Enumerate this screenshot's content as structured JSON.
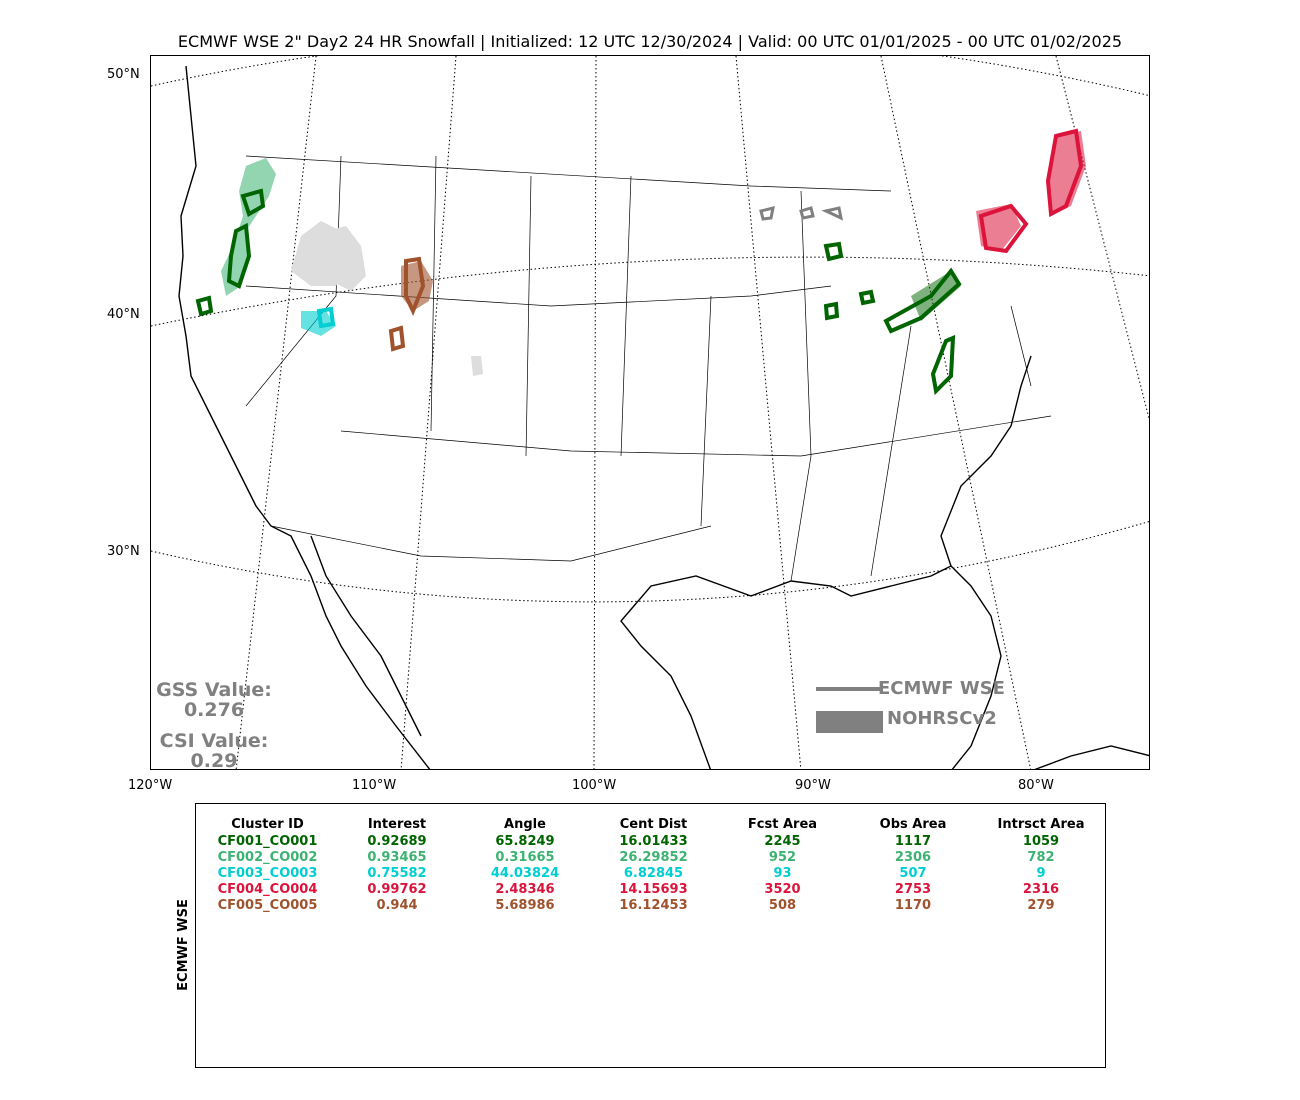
{
  "title": "ECMWF WSE 2\" Day2 24 HR Snowfall | Initialized: 12 UTC 12/30/2024 | Valid: 00 UTC 01/01/2025 - 00 UTC 01/02/2025",
  "map": {
    "lat_labels": [
      "50°N",
      "40°N",
      "30°N"
    ],
    "lon_labels": [
      "120°W",
      "110°W",
      "100°W",
      "90°W",
      "80°W"
    ],
    "colors": {
      "fcst_outline": "#808080",
      "obs_fill": "#808080",
      "c1": "#006400",
      "c2": "#3cb371",
      "c3": "#00ced1",
      "c4": "#dc143c",
      "c5": "#a0522d",
      "unmatched_obs": "#dddddd"
    }
  },
  "scores": {
    "gss_label": "GSS Value:",
    "gss_value": "0.276",
    "csi_label": "CSI Value:",
    "csi_value": "0.29"
  },
  "legend": {
    "line_label": "ECMWF WSE",
    "fill_label": "NOHRSCv2"
  },
  "table": {
    "side_label": "ECMWF WSE",
    "headers": [
      "Cluster ID",
      "Interest",
      "Angle",
      "Cent Dist",
      "Fcst Area",
      "Obs Area",
      "Intrsct Area"
    ],
    "rows": [
      {
        "color": "#006400",
        "cells": [
          "CF001_CO001",
          "0.92689",
          "65.8249",
          "16.01433",
          "2245",
          "1117",
          "1059"
        ]
      },
      {
        "color": "#3cb371",
        "cells": [
          "CF002_CO002",
          "0.93465",
          "0.31665",
          "26.29852",
          "952",
          "2306",
          "782"
        ]
      },
      {
        "color": "#00ced1",
        "cells": [
          "CF003_CO003",
          "0.75582",
          "44.03824",
          "6.82845",
          "93",
          "507",
          "9"
        ]
      },
      {
        "color": "#dc143c",
        "cells": [
          "CF004_CO004",
          "0.99762",
          "2.48346",
          "14.15693",
          "3520",
          "2753",
          "2316"
        ]
      },
      {
        "color": "#a0522d",
        "cells": [
          "CF005_CO005",
          "0.944",
          "5.68986",
          "16.12453",
          "508",
          "1170",
          "279"
        ]
      }
    ]
  }
}
